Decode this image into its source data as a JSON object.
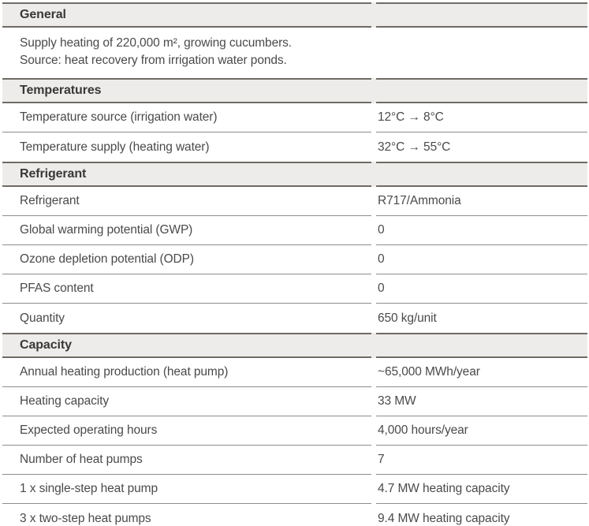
{
  "sections": {
    "general": {
      "title": "General",
      "line1": "Supply heating of 220,000 m², growing cucumbers.",
      "line2": "Source: heat recovery from irrigation water ponds."
    },
    "temperatures": {
      "title": "Temperatures",
      "rows": [
        {
          "label": "Temperature source (irrigation water)",
          "value": "12°C → 8°C"
        },
        {
          "label": "Temperature supply (heating water)",
          "value": "32°C → 55°C"
        }
      ]
    },
    "refrigerant": {
      "title": "Refrigerant",
      "rows": [
        {
          "label": "Refrigerant",
          "value": "R717/Ammonia"
        },
        {
          "label": "Global warming potential (GWP)",
          "value": "0"
        },
        {
          "label": "Ozone depletion potential (ODP)",
          "value": "0"
        },
        {
          "label": "PFAS content",
          "value": "0"
        },
        {
          "label": "Quantity",
          "value": "650 kg/unit"
        }
      ]
    },
    "capacity": {
      "title": "Capacity",
      "rows": [
        {
          "label": "Annual heating production (heat pump)",
          "value": "~65,000 MWh/year"
        },
        {
          "label": "Heating capacity",
          "value": "33 MW"
        },
        {
          "label": "Expected operating hours",
          "value": "4,000 hours/year"
        },
        {
          "label": "Number of heat pumps",
          "value": "7"
        },
        {
          "label": "1 x single-step heat pump",
          "value": "4.7 MW heating capacity"
        },
        {
          "label": "3 x two-step heat pumps",
          "value": "9.4 MW heating capacity"
        }
      ]
    }
  },
  "colors": {
    "page_bg": "#ffffff",
    "header_bg": "#edecea",
    "header_border": "#6f6b66",
    "header_text": "#383838",
    "divider": "#8f8d8a",
    "text": "#4a4a4a"
  }
}
